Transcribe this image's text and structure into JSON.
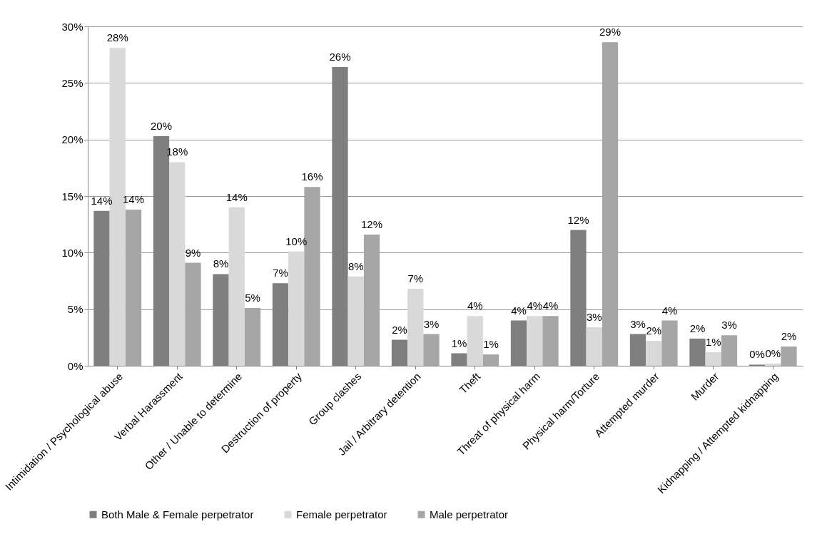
{
  "chart_data": {
    "type": "bar",
    "categories": [
      "Intimidation / Psychological abuse",
      "Verbal Harassment",
      "Other / Unable to determine",
      "Destruction of property",
      "Group clashes",
      "Jail / Arbitrary detention",
      "Theft",
      "Threat of physical harm",
      "Physical harm/Torture",
      "Attempted murder",
      "Murder",
      "Kidnapping / Attempted kidnapping"
    ],
    "series": [
      {
        "name": "Both Male & Female perpetrator",
        "color": "#7f7f7f",
        "values": [
          13.7,
          20.3,
          8.1,
          7.3,
          26.4,
          2.3,
          1.1,
          4.0,
          12.0,
          2.8,
          2.4,
          0.1
        ],
        "value_labels": [
          "14%",
          "20%",
          "8%",
          "7%",
          "26%",
          "2%",
          "1%",
          "4%",
          "12%",
          "3%",
          "2%",
          "0%"
        ]
      },
      {
        "name": "Female perpetrator",
        "color": "#d9d9d9",
        "values": [
          28.1,
          18.0,
          14.0,
          10.1,
          7.9,
          6.8,
          4.4,
          4.4,
          3.4,
          2.2,
          1.2,
          0.2
        ],
        "value_labels": [
          "28%",
          "18%",
          "14%",
          "10%",
          "8%",
          "7%",
          "4%",
          "4%",
          "3%",
          "2%",
          "1%",
          "0%"
        ]
      },
      {
        "name": "Male perpetrator",
        "color": "#a6a6a6",
        "values": [
          13.8,
          9.1,
          5.1,
          15.8,
          11.6,
          2.8,
          1.0,
          4.4,
          28.6,
          4.0,
          2.7,
          1.7
        ],
        "value_labels": [
          "14%",
          "9%",
          "5%",
          "16%",
          "12%",
          "3%",
          "1%",
          "4%",
          "29%",
          "4%",
          "3%",
          "2%"
        ]
      }
    ],
    "ylim": [
      0,
      30
    ],
    "yticks": [
      {
        "value": 0,
        "label": "0%"
      },
      {
        "value": 5,
        "label": "5%"
      },
      {
        "value": 10,
        "label": "10%"
      },
      {
        "value": 15,
        "label": "15%"
      },
      {
        "value": 20,
        "label": "20%"
      },
      {
        "value": 25,
        "label": "25%"
      },
      {
        "value": 30,
        "label": "30%"
      }
    ],
    "grid": "y",
    "legend": "bottom"
  }
}
